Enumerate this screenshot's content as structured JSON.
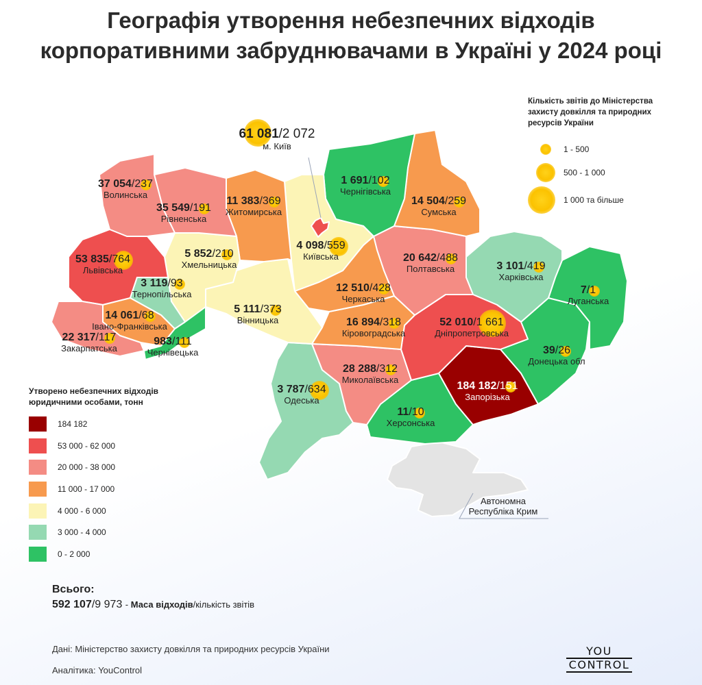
{
  "title_line1": "Географія утворення небезпечних відходів",
  "title_line2": "корпоративними забруднювачами в Україні у 2024 році",
  "colors": {
    "c184": "#990000",
    "c53": "#ee4f4f",
    "c20": "#f48c84",
    "c11": "#f79a4e",
    "c4": "#fcf4b6",
    "c3": "#95d9b2",
    "c0": "#2ec264",
    "crimea": "#e4e4e4",
    "bubble": "#fbc200"
  },
  "regions": [
    {
      "id": "volyn",
      "mass": "37 054",
      "reports": "237",
      "name": "Волинська"
    },
    {
      "id": "rivne",
      "mass": "35 549",
      "reports": "191",
      "name": "Рівненська"
    },
    {
      "id": "zhytomyr",
      "mass": "11 383",
      "reports": "369",
      "name": "Житомирська"
    },
    {
      "id": "kyivobl",
      "mass": "4 098",
      "reports": "559",
      "name": "Київська"
    },
    {
      "id": "chernihiv",
      "mass": "1 691",
      "reports": "102",
      "name": "Чернігівська"
    },
    {
      "id": "sumy",
      "mass": "14 504",
      "reports": "259",
      "name": "Сумська"
    },
    {
      "id": "lviv",
      "mass": "53 835",
      "reports": "764",
      "name": "Львівська"
    },
    {
      "id": "khmelnytskyi",
      "mass": "5 852",
      "reports": "210",
      "name": "Хмельницька"
    },
    {
      "id": "ternopil",
      "mass": "3 119",
      "reports": "93",
      "name": "Тернопільська"
    },
    {
      "id": "poltava",
      "mass": "20 642",
      "reports": "488",
      "name": "Полтавська"
    },
    {
      "id": "kharkiv",
      "mass": "3 101",
      "reports": "419",
      "name": "Харківська"
    },
    {
      "id": "cherkasy",
      "mass": "12 510",
      "reports": "428",
      "name": "Черкаська"
    },
    {
      "id": "luhansk",
      "mass": "7",
      "reports": "1",
      "name": "Луганська"
    },
    {
      "id": "ivanofrankivsk",
      "mass": "14 061",
      "reports": "68",
      "name": "Івано-Франківська"
    },
    {
      "id": "vinnytsia",
      "mass": "5 111",
      "reports": "373",
      "name": "Вінницька"
    },
    {
      "id": "kirovohrad",
      "mass": "16 894",
      "reports": "318",
      "name": "Кіровоградська"
    },
    {
      "id": "dnipro",
      "mass": "52 010",
      "reports": "1 661",
      "name": "Дніпропетровська"
    },
    {
      "id": "zakarpattia",
      "mass": "22 317",
      "reports": "117",
      "name": "Закарпатська"
    },
    {
      "id": "chernivtsi",
      "mass": "983",
      "reports": "111",
      "name": "Чернівецька"
    },
    {
      "id": "donetsk",
      "mass": "39",
      "reports": "26",
      "name": "Донецька обл"
    },
    {
      "id": "mykolaiv",
      "mass": "28 288",
      "reports": "312",
      "name": "Миколаївська"
    },
    {
      "id": "zaporizhzhia",
      "mass": "184 182",
      "reports": "151",
      "name": "Запорізька"
    },
    {
      "id": "odesa",
      "mass": "3 787",
      "reports": "634",
      "name": "Одеська"
    },
    {
      "id": "kherson",
      "mass": "11",
      "reports": "10",
      "name": "Херсонська"
    }
  ],
  "kyiv": {
    "mass": "61 081",
    "reports": "2 072",
    "name": "м. Київ"
  },
  "crimea_label_1": "Автономна",
  "crimea_label_2": "Республіка Крим",
  "size_legend": {
    "caption_1": "Кількість звітів до Міністерства",
    "caption_2": "захисту довкілля та природних",
    "caption_3": "ресурсів України",
    "items": [
      "1 - 500",
      "500 - 1 000",
      "1 000 та більше"
    ]
  },
  "color_legend": {
    "caption_1": "Утворено небезпечних відходів",
    "caption_2": "юридичними особами, тонн",
    "items": [
      "184 182",
      "53 000 - 62 000",
      "20 000 - 38 000",
      "11 000 - 17 000",
      "4 000 - 6 000",
      "3 000 - 4 000",
      "0 - 2 000"
    ]
  },
  "total": {
    "heading": "Всього:",
    "mass": "592 107",
    "reports": "9 973",
    "sep": "-",
    "desc_bold": "Маса відходів",
    "desc_rest": "кількість звітів"
  },
  "source": "Дані: Міністерство захисту довкілля та природних ресурсів України",
  "analytics": "Аналітика: YouControl",
  "logo_1": "YOU",
  "logo_2": "CONTROL"
}
